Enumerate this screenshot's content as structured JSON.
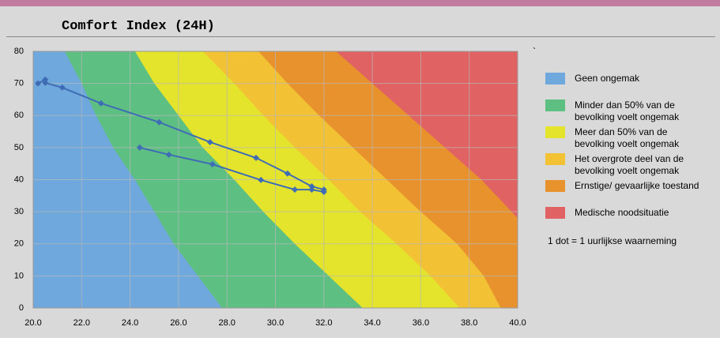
{
  "chart_data": {
    "type": "line",
    "title": "Comfort Index (24H)",
    "stray_mark": "`",
    "note": "1 dot = 1 uurlijkse waarneming",
    "xlim": [
      20,
      40
    ],
    "ylim": [
      0,
      80
    ],
    "xticks": [
      {
        "value": 20,
        "label": "20.0"
      },
      {
        "value": 22,
        "label": "22.0"
      },
      {
        "value": 24,
        "label": "24.0"
      },
      {
        "value": 26,
        "label": "26.0"
      },
      {
        "value": 28,
        "label": "28.0"
      },
      {
        "value": 30,
        "label": "30.0"
      },
      {
        "value": 32,
        "label": "32.0"
      },
      {
        "value": 34,
        "label": "34.0"
      },
      {
        "value": 36,
        "label": "36.0"
      },
      {
        "value": 38,
        "label": "38.0"
      },
      {
        "value": 40,
        "label": "40.0"
      }
    ],
    "yticks": [
      0,
      10,
      20,
      30,
      40,
      50,
      60,
      70,
      80
    ],
    "grid": true,
    "zones": [
      {
        "name": "Geen ongemak",
        "color": "#6fa8dc"
      },
      {
        "name": "Minder dan 50% van de\nbevolking voelt ongemak",
        "color": "#5dbf82",
        "boundary_x": [
          21.3,
          22.0,
          22.6,
          23.3,
          24.2,
          25.0,
          25.8,
          26.8,
          27.8
        ],
        "boundary_y": [
          80,
          70,
          60,
          50,
          40,
          30,
          20,
          10,
          0
        ]
      },
      {
        "name": "Meer dan 50% van de\nbevolking voelt ongemak",
        "color": "#e4e42c",
        "boundary_x": [
          24.2,
          25.0,
          26.0,
          27.0,
          28.3,
          29.5,
          30.8,
          32.2,
          33.6
        ],
        "boundary_y": [
          80,
          70,
          60,
          50,
          40,
          30,
          20,
          10,
          0
        ]
      },
      {
        "name": "Het overgrote deel van de\nbevolking voelt ongemak",
        "color": "#f3c234",
        "boundary_x": [
          27.0,
          28.3,
          29.5,
          30.8,
          32.2,
          33.5,
          35.0,
          36.4,
          37.6
        ],
        "boundary_y": [
          80,
          70,
          60,
          50,
          40,
          30,
          20,
          10,
          0
        ]
      },
      {
        "name": "Ernstige/ gevaarlijke toestand",
        "color": "#e8922e",
        "boundary_x": [
          29.3,
          30.5,
          31.8,
          33.2,
          34.6,
          36.0,
          37.5,
          38.6,
          39.3
        ],
        "boundary_y": [
          80,
          70,
          60,
          50,
          40,
          30,
          20,
          10,
          0
        ]
      },
      {
        "name": "Medische noodsituatie",
        "color": "#e06262",
        "boundary_x": [
          32.5,
          34.0,
          35.5,
          37.0,
          38.5,
          40.0
        ],
        "boundary_y": [
          80,
          70,
          60,
          50,
          40,
          28
        ]
      }
    ],
    "series": [
      {
        "color": "#3f6db5",
        "x": [
          20.2,
          20.5,
          20.5,
          21.2,
          22.8,
          25.2,
          27.3,
          29.2,
          30.5,
          31.5,
          32.0,
          32.0,
          31.5,
          30.8,
          29.4,
          27.4,
          25.6,
          24.4
        ],
        "values": [
          70.0,
          71.2,
          70.2,
          68.7,
          63.8,
          57.9,
          51.7,
          46.8,
          41.9,
          37.9,
          36.9,
          36.2,
          36.9,
          36.9,
          39.9,
          44.8,
          47.8,
          50.0
        ]
      }
    ]
  }
}
